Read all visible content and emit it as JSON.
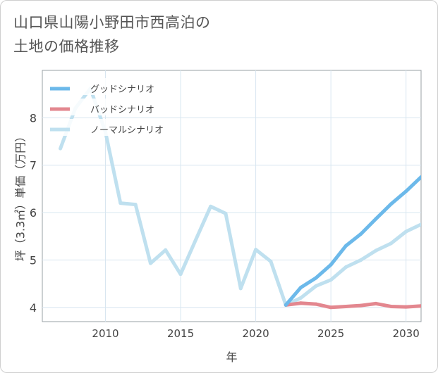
{
  "chart_data": {
    "type": "line",
    "title_lines": [
      "山口県山陽小野田市西高泊の",
      "土地の価格推移"
    ],
    "xlabel": "年",
    "ylabel": "坪（3.3㎡）単価（万円）",
    "xlim": [
      2005.8,
      2031.0
    ],
    "ylim": [
      3.7,
      9.0
    ],
    "xticks": [
      2010,
      2015,
      2020,
      2025,
      2030
    ],
    "yticks": [
      4,
      5,
      6,
      7,
      8
    ],
    "legend": "top-left",
    "grid": true,
    "series": [
      {
        "name": "グッドシナリオ",
        "color": "#6cb9ea",
        "x": [
          2022,
          2023,
          2024,
          2025,
          2026,
          2027,
          2028,
          2029,
          2030,
          2031
        ],
        "values": [
          4.05,
          4.42,
          4.62,
          4.9,
          5.3,
          5.55,
          5.87,
          6.18,
          6.45,
          6.75
        ]
      },
      {
        "name": "バッドシナリオ",
        "color": "#e3878f",
        "x": [
          2022,
          2023,
          2024,
          2025,
          2026,
          2027,
          2028,
          2029,
          2030,
          2031
        ],
        "values": [
          4.05,
          4.09,
          4.07,
          4.0,
          4.02,
          4.04,
          4.08,
          4.02,
          4.01,
          4.03
        ]
      },
      {
        "name": "ノーマルシナリオ",
        "color": "#bfe0ef",
        "x": [
          2007,
          2008,
          2009,
          2010,
          2011,
          2012,
          2013,
          2014,
          2015,
          2016,
          2017,
          2018,
          2019,
          2020,
          2021,
          2022,
          2023,
          2024,
          2025,
          2026,
          2027,
          2028,
          2029,
          2030,
          2031
        ],
        "values": [
          7.35,
          8.2,
          8.62,
          7.7,
          6.2,
          6.17,
          4.93,
          5.21,
          4.7,
          5.42,
          6.13,
          5.98,
          4.4,
          5.22,
          4.97,
          4.05,
          4.2,
          4.45,
          4.58,
          4.85,
          5.0,
          5.2,
          5.35,
          5.6,
          5.75
        ]
      }
    ]
  }
}
